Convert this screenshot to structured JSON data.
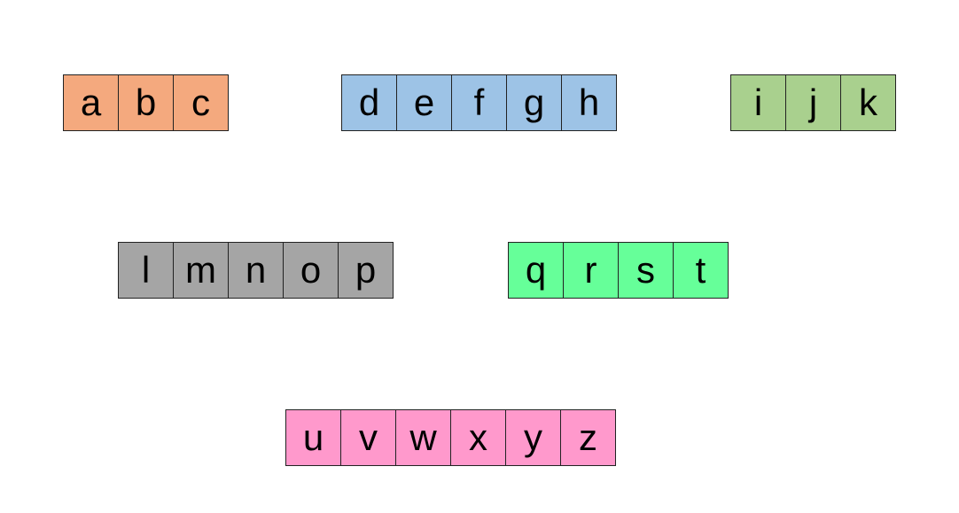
{
  "groups": [
    {
      "letters": [
        "a",
        "b",
        "c"
      ],
      "color": "#F4A97E"
    },
    {
      "letters": [
        "d",
        "e",
        "f",
        "g",
        "h"
      ],
      "color": "#9DC3E6"
    },
    {
      "letters": [
        "i",
        "j",
        "k"
      ],
      "color": "#A9D08E"
    },
    {
      "letters": [
        "l",
        "m",
        "n",
        "o",
        "p"
      ],
      "color": "#A5A5A5"
    },
    {
      "letters": [
        "q",
        "r",
        "s",
        "t"
      ],
      "color": "#66FF99"
    },
    {
      "letters": [
        "u",
        "v",
        "w",
        "x",
        "y",
        "z"
      ],
      "color": "#FF99CC"
    }
  ]
}
